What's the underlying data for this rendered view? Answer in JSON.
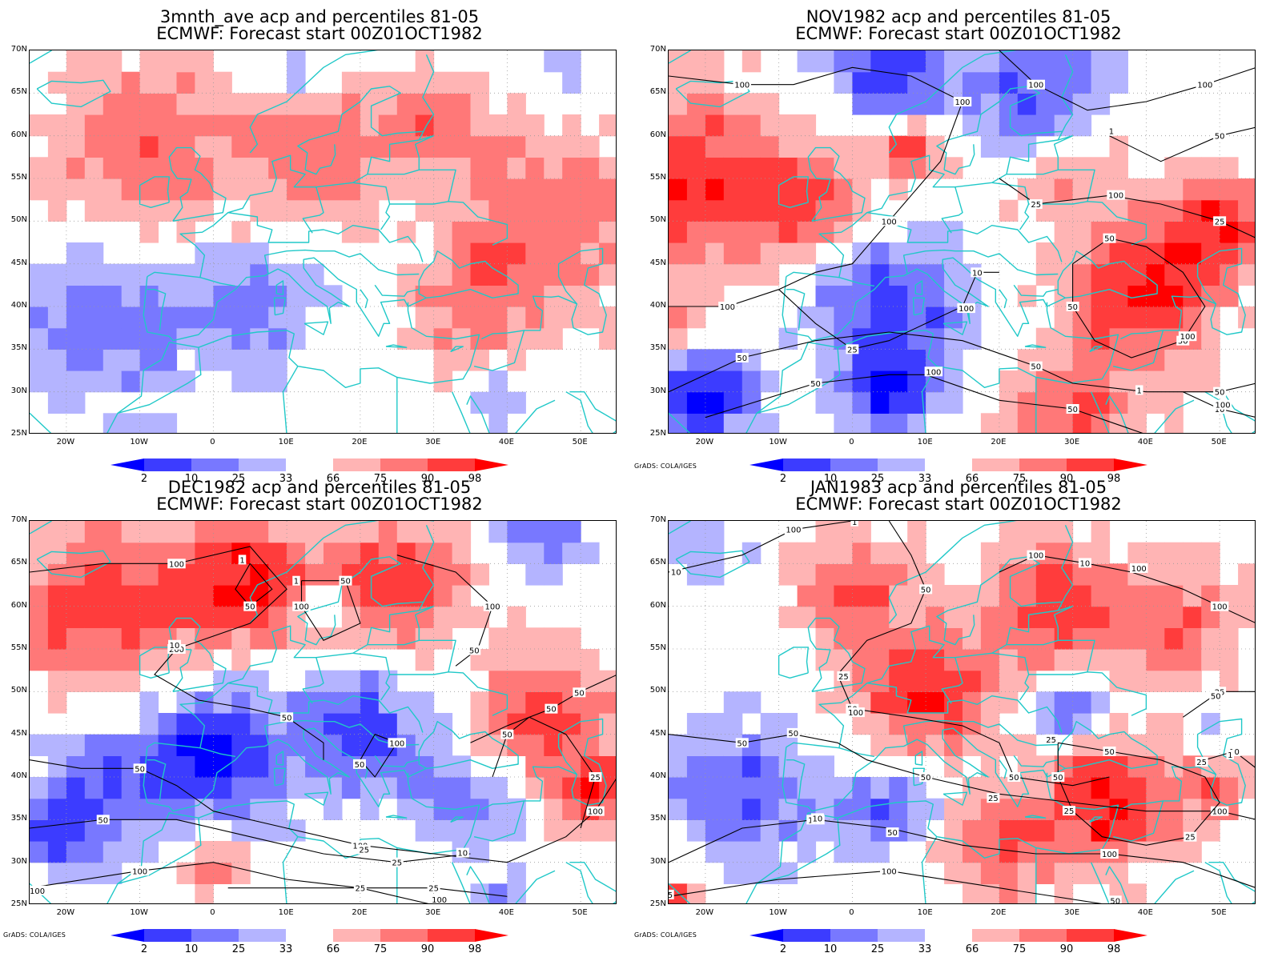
{
  "panels": [
    {
      "title_line1": "3mnth_ave acp and percentiles 81-05",
      "title_line2": "ECMWF: Forecast start 00Z01OCT1982",
      "contour_labels": [],
      "credit": ""
    },
    {
      "title_line1": "NOV1982 acp and percentiles 81-05",
      "title_line2": "ECMWF: Forecast start 00Z01OCT1982",
      "contour_labels": [
        "100",
        "100",
        "100",
        "100",
        "100",
        "100",
        "50",
        "50",
        "50",
        "50",
        "50",
        "50",
        "50",
        "50",
        "50",
        "25",
        "25",
        "25",
        "10",
        "10",
        "1",
        "1",
        "100",
        "100",
        "100",
        "100",
        "100"
      ],
      "credit": "GrADS: COLA/IGES"
    },
    {
      "title_line1": "DEC1982 acp and percentiles 81-05",
      "title_line2": "ECMWF: Forecast start 00Z01OCT1982",
      "contour_labels": [
        "100",
        "200",
        "50",
        "50",
        "50",
        "100",
        "100",
        "50",
        "100",
        "100",
        "100",
        "25",
        "50",
        "50",
        "25",
        "100",
        "50",
        "25",
        "25",
        "50",
        "10",
        "100",
        "10",
        "1",
        "1",
        "50",
        "25",
        "100",
        "50"
      ],
      "credit": "GrADS: COLA/IGES"
    },
    {
      "title_line1": "JAN1983 acp and percentiles 81-05",
      "title_line2": "ECMWF: Forecast start 00Z01OCT1982",
      "contour_labels": [
        "100",
        "50",
        "50",
        "50",
        "100",
        "100",
        "50",
        "50",
        "100",
        "100",
        "100",
        "100",
        "50",
        "25",
        "50",
        "25",
        "10",
        "25",
        "10",
        "100",
        "100",
        "25",
        "10",
        "50",
        "25",
        "50",
        "1",
        "1",
        "25",
        "10",
        "50",
        "50",
        "25",
        "25"
      ],
      "credit": "GrADS: COLA/IGES"
    }
  ],
  "lat_labels": [
    "70N",
    "65N",
    "60N",
    "55N",
    "50N",
    "45N",
    "40N",
    "35N",
    "30N",
    "25N"
  ],
  "lon_labels": [
    "20W",
    "10W",
    "0",
    "10E",
    "20E",
    "30E",
    "40E",
    "50E"
  ],
  "colorbar": {
    "labels": [
      "2",
      "10",
      "25",
      "33",
      "66",
      "75",
      "90",
      "98"
    ],
    "colors": [
      "#0000ff",
      "#3c3cff",
      "#7878ff",
      "#b4b4ff",
      "#ffffff",
      "#ffb4b4",
      "#ff7878",
      "#ff3c3c",
      "#ff0000"
    ]
  },
  "map_colors": {
    "coast": "#20c8c8",
    "contour": "#000000",
    "grid": "#9a9a9a"
  }
}
